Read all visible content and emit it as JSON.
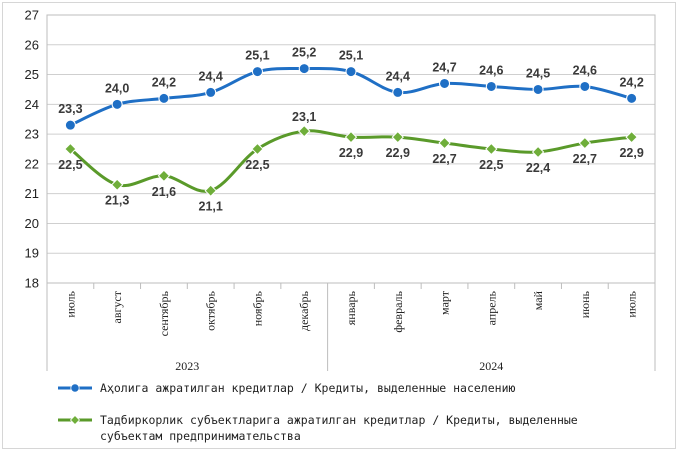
{
  "chart_data": {
    "type": "line",
    "categories": [
      "июль",
      "август",
      "сентябрь",
      "октябрь",
      "ноябрь",
      "декабрь",
      "январь",
      "февраль",
      "март",
      "апрель",
      "май",
      "июнь",
      "июль"
    ],
    "year_groups": [
      {
        "label": "2023",
        "from": 0,
        "to": 5
      },
      {
        "label": "2024",
        "from": 6,
        "to": 12
      }
    ],
    "ylim": [
      18,
      27
    ],
    "yticks": [
      "18",
      "19",
      "20",
      "21",
      "22",
      "23",
      "24",
      "25",
      "26",
      "27"
    ],
    "grid": true,
    "legend_position": "bottom",
    "series": [
      {
        "name": "Аҳолига ажратилган кредитлар / Кредиты, выделенные населению",
        "color": "#1f6fc5",
        "values": [
          23.3,
          24.0,
          24.2,
          24.4,
          25.1,
          25.2,
          25.1,
          24.4,
          24.7,
          24.6,
          24.5,
          24.6,
          24.2
        ],
        "labels": [
          "23,3",
          "24,0",
          "24,2",
          "24,4",
          "25,1",
          "25,2",
          "25,1",
          "24,4",
          "24,7",
          "24,6",
          "24,5",
          "24,6",
          "24,2"
        ]
      },
      {
        "name": "Тадбиркорлик субъектларига ажратилган кредитлар / Кредиты, выделенные субъектам предпринимательства",
        "color": "#5a9a2a",
        "values": [
          22.5,
          21.3,
          21.6,
          21.1,
          22.5,
          23.1,
          22.9,
          22.9,
          22.7,
          22.5,
          22.4,
          22.7,
          22.9
        ],
        "labels": [
          "22,5",
          "21,3",
          "21,6",
          "21,1",
          "22,5",
          "23,1",
          "22,9",
          "22,9",
          "22,7",
          "22,5",
          "22,4",
          "22,7",
          "22,9"
        ]
      }
    ]
  },
  "legend": {
    "series1": "Аҳолига ажратилган кредитлар / Кредиты, выделенные населению",
    "series2": "Тадбиркорлик субъектларига ажратилган кредитлар / Кредиты, выделенные субъектам предпринимательства"
  }
}
